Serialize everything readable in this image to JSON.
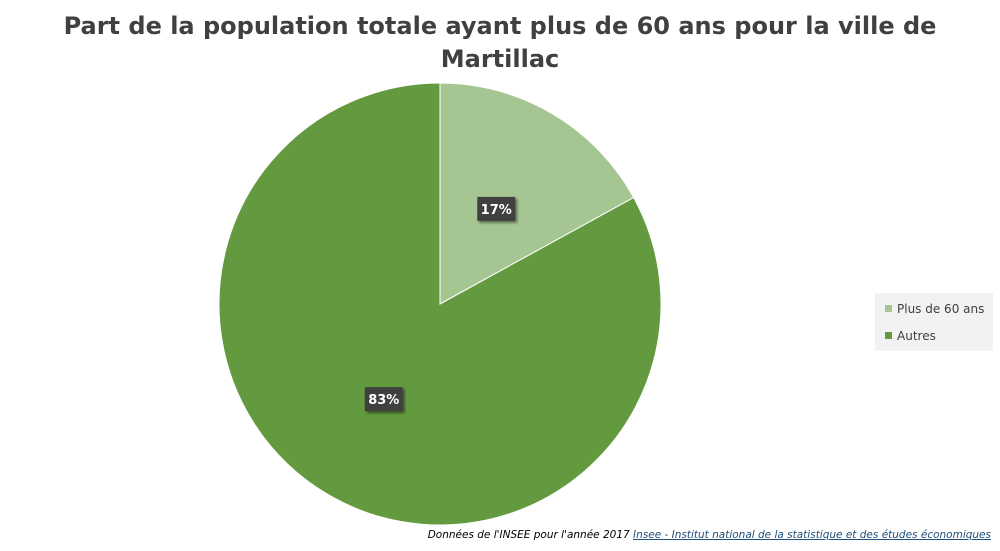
{
  "chart_data": {
    "type": "pie",
    "title": "Part de la population totale ayant plus de 60 ans pour la ville de Martillac",
    "title_lines": [
      "Part de la population totale ayant plus de 60 ans pour la ville de",
      "Martillac"
    ],
    "slices": [
      {
        "name": "Plus de 60 ans",
        "value": 17,
        "label": "17%",
        "color": "#a5c692"
      },
      {
        "name": "Autres",
        "value": 83,
        "label": "83%",
        "color": "#639a3f"
      }
    ],
    "legend_position": "right"
  },
  "source": {
    "text": "Données de l'INSEE pour l'année 2017 ",
    "link_text": "Insee - Institut national de la statistique et des études économiques"
  }
}
